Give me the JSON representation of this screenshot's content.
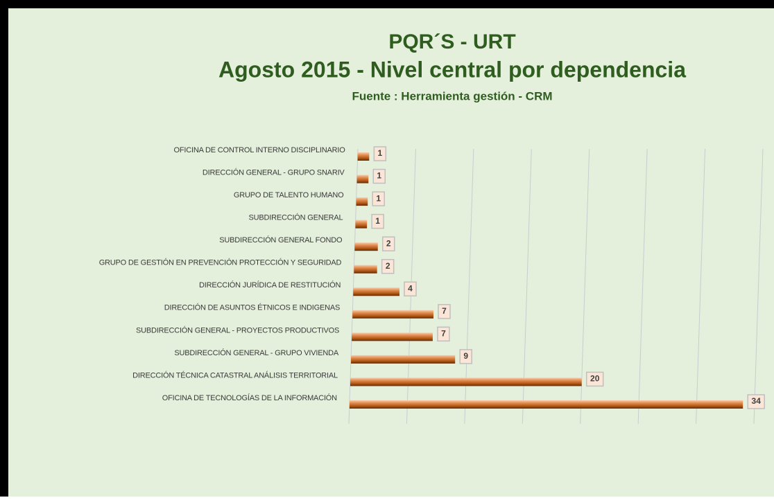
{
  "chart_data": {
    "type": "bar",
    "orientation": "horizontal",
    "title": "PQR´S - URT",
    "subtitle": "Agosto 2015 - Nivel central por dependencia",
    "source": "Fuente : Herramienta gestión - CRM",
    "categories": [
      "OFICINA DE CONTROL INTERNO DISCIPLINARIO",
      "DIRECCIÓN GENERAL - GRUPO SNARIV",
      "GRUPO DE TALENTO HUMANO",
      "SUBDIRECCIÓN GENERAL",
      "SUBDIRECCIÓN GENERAL FONDO",
      "GRUPO DE GESTIÓN EN PREVENCIÓN PROTECCIÓN Y SEGURIDAD",
      "DIRECCIÓN JURÍDICA DE RESTITUCIÓN",
      "DIRECCIÓN DE ASUNTOS ÉTNICOS E INDIGENAS",
      "SUBDIRECCIÓN GENERAL - PROYECTOS PRODUCTIVOS",
      "SUBDIRECCIÓN GENERAL -  GRUPO VIVIENDA",
      "DIRECCIÓN TÉCNICA CATASTRAL ANÁLISIS TERRITORIAL",
      "OFICINA DE TECNOLOGÍAS DE LA INFORMACIÓN"
    ],
    "values": [
      1,
      1,
      1,
      1,
      2,
      2,
      4,
      7,
      7,
      9,
      20,
      34
    ],
    "color": "#c55a11",
    "xlim": [
      0,
      35
    ],
    "xticks": [
      0,
      5,
      10,
      15,
      20,
      25,
      30,
      35
    ],
    "grid": true
  }
}
